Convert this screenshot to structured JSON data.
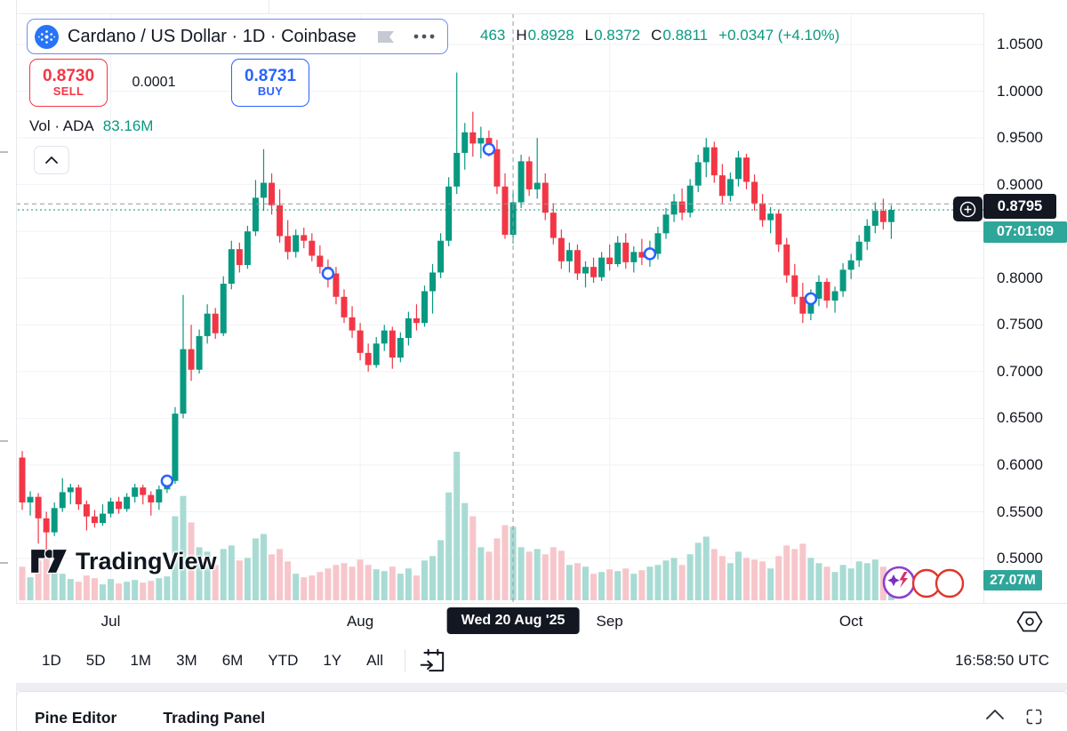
{
  "header": {
    "symbol_title": "Cardano / US Dollar · 1D · Coinbase",
    "ohlc": {
      "open_partial": "463",
      "h_label": "H",
      "high": "0.8928",
      "l_label": "L",
      "low": "0.8372",
      "c_label": "C",
      "close": "0.8811",
      "change": "+0.0347 (+4.10%)"
    },
    "sell": {
      "price": "0.8730",
      "label": "SELL"
    },
    "spread": "0.0001",
    "buy": {
      "price": "0.8731",
      "label": "BUY"
    },
    "volume_indicator": {
      "label": "Vol · ADA",
      "value": "83.16M"
    }
  },
  "watermark": {
    "text": "TradingView"
  },
  "price_axis": {
    "ticks": [
      "1.0500",
      "1.0000",
      "0.9500",
      "0.9000",
      "0.8500",
      "0.8000",
      "0.7500",
      "0.7000",
      "0.6500",
      "0.6000",
      "0.5500",
      "0.5000"
    ],
    "crosshair_price": "0.8795",
    "countdown": "07:01:09",
    "volume_badge": "27.07M"
  },
  "time_axis": {
    "months": [
      {
        "label": "Jul",
        "candle_index": 11
      },
      {
        "label": "Aug",
        "candle_index": 42
      },
      {
        "label": "Sep",
        "candle_index": 73
      },
      {
        "label": "Oct",
        "candle_index": 103
      }
    ],
    "crosshair_date": "Wed 20 Aug '25"
  },
  "toolbar": {
    "ranges": [
      "1D",
      "5D",
      "1M",
      "3M",
      "6M",
      "YTD",
      "1Y",
      "All"
    ],
    "clock": "16:58:50 UTC"
  },
  "bottom_panel": {
    "tabs": [
      "Pine Editor",
      "Trading Panel"
    ]
  },
  "colors": {
    "up": "#089981",
    "down": "#F23645",
    "vol_up": "#A8DBD3",
    "vol_down": "#F6C6CB",
    "buy": "#2962FF",
    "sell": "#F23645",
    "badge_dark": "#131722",
    "countdown_bg": "#2FA69A",
    "crosshair": "#9598A1",
    "grid": "#F0F2F6"
  },
  "chart_data": {
    "type": "candlestick+volume",
    "symbol": "Cardano / US Dollar",
    "interval": "1D",
    "exchange": "Coinbase",
    "price_ticks": [
      1.05,
      1.0,
      0.95,
      0.9,
      0.85,
      0.8,
      0.75,
      0.7,
      0.65,
      0.6,
      0.55,
      0.5
    ],
    "ylim": [
      0.47,
      1.07
    ],
    "last_price": 0.873,
    "crosshair": {
      "candle_index": 61,
      "price": 0.8795,
      "date": "Wed 20 Aug '25"
    },
    "volume_unit": "M",
    "crosshair_volume": 83.16,
    "last_volume": 27.07,
    "markers": [
      {
        "index": 18,
        "price": 0.583
      },
      {
        "index": 38,
        "price": 0.805
      },
      {
        "index": 58,
        "price": 0.938
      },
      {
        "index": 78,
        "price": 0.826
      },
      {
        "index": 98,
        "price": 0.778
      }
    ],
    "candles": [
      [
        0.608,
        0.615,
        0.552,
        0.56,
        38
      ],
      [
        0.56,
        0.572,
        0.546,
        0.566,
        26
      ],
      [
        0.566,
        0.57,
        0.516,
        0.543,
        45
      ],
      [
        0.543,
        0.55,
        0.506,
        0.528,
        52
      ],
      [
        0.528,
        0.56,
        0.524,
        0.554,
        34
      ],
      [
        0.554,
        0.586,
        0.55,
        0.571,
        30
      ],
      [
        0.571,
        0.58,
        0.558,
        0.576,
        24
      ],
      [
        0.576,
        0.579,
        0.552,
        0.558,
        21
      ],
      [
        0.558,
        0.562,
        0.53,
        0.545,
        28
      ],
      [
        0.545,
        0.552,
        0.533,
        0.538,
        25
      ],
      [
        0.538,
        0.558,
        0.535,
        0.548,
        18
      ],
      [
        0.548,
        0.565,
        0.544,
        0.561,
        24
      ],
      [
        0.561,
        0.566,
        0.548,
        0.553,
        19
      ],
      [
        0.553,
        0.57,
        0.55,
        0.566,
        21
      ],
      [
        0.566,
        0.58,
        0.56,
        0.576,
        23
      ],
      [
        0.576,
        0.579,
        0.558,
        0.568,
        20
      ],
      [
        0.568,
        0.572,
        0.546,
        0.56,
        22
      ],
      [
        0.56,
        0.578,
        0.552,
        0.574,
        25
      ],
      [
        0.574,
        0.588,
        0.57,
        0.583,
        27
      ],
      [
        0.583,
        0.662,
        0.58,
        0.655,
        95
      ],
      [
        0.655,
        0.782,
        0.65,
        0.724,
        118
      ],
      [
        0.724,
        0.75,
        0.69,
        0.702,
        88
      ],
      [
        0.702,
        0.745,
        0.698,
        0.738,
        60
      ],
      [
        0.738,
        0.772,
        0.73,
        0.762,
        55
      ],
      [
        0.762,
        0.768,
        0.735,
        0.741,
        40
      ],
      [
        0.741,
        0.802,
        0.738,
        0.794,
        58
      ],
      [
        0.794,
        0.84,
        0.788,
        0.831,
        62
      ],
      [
        0.831,
        0.838,
        0.806,
        0.814,
        45
      ],
      [
        0.814,
        0.856,
        0.81,
        0.85,
        48
      ],
      [
        0.85,
        0.905,
        0.845,
        0.886,
        70
      ],
      [
        0.886,
        0.938,
        0.872,
        0.902,
        75
      ],
      [
        0.902,
        0.912,
        0.868,
        0.878,
        52
      ],
      [
        0.878,
        0.895,
        0.838,
        0.845,
        58
      ],
      [
        0.845,
        0.862,
        0.82,
        0.828,
        44
      ],
      [
        0.828,
        0.852,
        0.822,
        0.846,
        30
      ],
      [
        0.846,
        0.854,
        0.832,
        0.84,
        26
      ],
      [
        0.84,
        0.848,
        0.818,
        0.824,
        28
      ],
      [
        0.824,
        0.835,
        0.805,
        0.812,
        32
      ],
      [
        0.812,
        0.82,
        0.79,
        0.805,
        36
      ],
      [
        0.805,
        0.812,
        0.772,
        0.78,
        40
      ],
      [
        0.78,
        0.788,
        0.752,
        0.758,
        42
      ],
      [
        0.758,
        0.77,
        0.736,
        0.744,
        38
      ],
      [
        0.744,
        0.752,
        0.712,
        0.72,
        46
      ],
      [
        0.72,
        0.73,
        0.7,
        0.707,
        40
      ],
      [
        0.707,
        0.737,
        0.704,
        0.73,
        35
      ],
      [
        0.73,
        0.75,
        0.722,
        0.744,
        33
      ],
      [
        0.744,
        0.748,
        0.703,
        0.715,
        38
      ],
      [
        0.715,
        0.742,
        0.71,
        0.736,
        30
      ],
      [
        0.736,
        0.764,
        0.728,
        0.757,
        36
      ],
      [
        0.757,
        0.772,
        0.744,
        0.752,
        28
      ],
      [
        0.752,
        0.792,
        0.748,
        0.786,
        45
      ],
      [
        0.786,
        0.815,
        0.762,
        0.806,
        50
      ],
      [
        0.806,
        0.848,
        0.8,
        0.84,
        68
      ],
      [
        0.84,
        0.908,
        0.834,
        0.898,
        122
      ],
      [
        0.898,
        1.02,
        0.89,
        0.934,
        168
      ],
      [
        0.934,
        0.966,
        0.916,
        0.956,
        110
      ],
      [
        0.956,
        0.978,
        0.93,
        0.944,
        95
      ],
      [
        0.944,
        0.962,
        0.928,
        0.95,
        60
      ],
      [
        0.95,
        0.958,
        0.93,
        0.938,
        55
      ],
      [
        0.938,
        0.948,
        0.89,
        0.898,
        70
      ],
      [
        0.898,
        0.912,
        0.842,
        0.8464,
        85
      ],
      [
        0.8463,
        0.8928,
        0.8372,
        0.8811,
        83.16
      ],
      [
        0.8811,
        0.932,
        0.875,
        0.925,
        60
      ],
      [
        0.925,
        0.93,
        0.888,
        0.895,
        55
      ],
      [
        0.895,
        0.95,
        0.885,
        0.902,
        58
      ],
      [
        0.902,
        0.912,
        0.862,
        0.87,
        52
      ],
      [
        0.87,
        0.88,
        0.836,
        0.843,
        60
      ],
      [
        0.843,
        0.852,
        0.81,
        0.818,
        56
      ],
      [
        0.818,
        0.838,
        0.806,
        0.83,
        40
      ],
      [
        0.83,
        0.836,
        0.798,
        0.805,
        42
      ],
      [
        0.805,
        0.818,
        0.79,
        0.812,
        38
      ],
      [
        0.812,
        0.822,
        0.795,
        0.801,
        30
      ],
      [
        0.801,
        0.828,
        0.797,
        0.822,
        32
      ],
      [
        0.822,
        0.836,
        0.808,
        0.815,
        35
      ],
      [
        0.815,
        0.845,
        0.812,
        0.838,
        33
      ],
      [
        0.838,
        0.848,
        0.81,
        0.817,
        36
      ],
      [
        0.817,
        0.834,
        0.806,
        0.828,
        30
      ],
      [
        0.828,
        0.842,
        0.814,
        0.822,
        34
      ],
      [
        0.822,
        0.84,
        0.812,
        0.826,
        38
      ],
      [
        0.826,
        0.855,
        0.82,
        0.848,
        40
      ],
      [
        0.848,
        0.875,
        0.842,
        0.868,
        45
      ],
      [
        0.868,
        0.89,
        0.86,
        0.882,
        48
      ],
      [
        0.882,
        0.896,
        0.862,
        0.87,
        40
      ],
      [
        0.87,
        0.906,
        0.865,
        0.899,
        52
      ],
      [
        0.899,
        0.932,
        0.892,
        0.924,
        65
      ],
      [
        0.924,
        0.95,
        0.908,
        0.94,
        72
      ],
      [
        0.94,
        0.946,
        0.902,
        0.91,
        58
      ],
      [
        0.91,
        0.922,
        0.88,
        0.888,
        50
      ],
      [
        0.888,
        0.913,
        0.882,
        0.906,
        42
      ],
      [
        0.906,
        0.936,
        0.898,
        0.929,
        55
      ],
      [
        0.929,
        0.933,
        0.895,
        0.903,
        48
      ],
      [
        0.903,
        0.911,
        0.872,
        0.88,
        46
      ],
      [
        0.88,
        0.89,
        0.855,
        0.862,
        44
      ],
      [
        0.862,
        0.876,
        0.848,
        0.869,
        36
      ],
      [
        0.869,
        0.873,
        0.828,
        0.836,
        50
      ],
      [
        0.836,
        0.843,
        0.795,
        0.803,
        62
      ],
      [
        0.803,
        0.815,
        0.772,
        0.78,
        58
      ],
      [
        0.78,
        0.795,
        0.752,
        0.762,
        64
      ],
      [
        0.762,
        0.788,
        0.755,
        0.778,
        48
      ],
      [
        0.778,
        0.803,
        0.77,
        0.796,
        42
      ],
      [
        0.796,
        0.8,
        0.768,
        0.776,
        38
      ],
      [
        0.776,
        0.791,
        0.763,
        0.786,
        32
      ],
      [
        0.786,
        0.816,
        0.78,
        0.809,
        40
      ],
      [
        0.809,
        0.826,
        0.799,
        0.819,
        36
      ],
      [
        0.819,
        0.846,
        0.812,
        0.839,
        44
      ],
      [
        0.839,
        0.863,
        0.83,
        0.856,
        42
      ],
      [
        0.856,
        0.881,
        0.848,
        0.872,
        46
      ],
      [
        0.872,
        0.885,
        0.852,
        0.86,
        38
      ],
      [
        0.86,
        0.878,
        0.842,
        0.873,
        27.07
      ]
    ]
  }
}
